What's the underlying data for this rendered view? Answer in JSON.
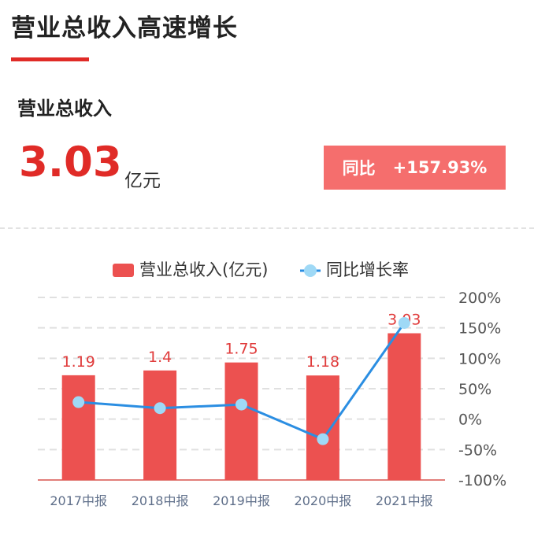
{
  "header": {
    "title": "营业总收入高速增长"
  },
  "metric": {
    "label": "营业总收入",
    "value": "3.03",
    "unit": "亿元",
    "yoy_label": "同比",
    "yoy_value": "+157.93%"
  },
  "colors": {
    "bar": "#ec5150",
    "line": "#2b8ee2",
    "point": "#9fd9f6",
    "accent": "#e02b27",
    "badge": "#f56e6d"
  },
  "chart_data": {
    "type": "bar+line",
    "categories": [
      "2017中报",
      "2018中报",
      "2019中报",
      "2020中报",
      "2021中报"
    ],
    "series": [
      {
        "name": "营业总收入(亿元)",
        "type": "bar",
        "values": [
          1.19,
          1.4,
          1.75,
          1.18,
          3.03
        ],
        "labels": [
          "1.19",
          "1.4",
          "1.75",
          "1.18",
          "3.03"
        ]
      },
      {
        "name": "同比增长率",
        "type": "line",
        "values": [
          28,
          18,
          24,
          -33,
          158
        ],
        "unit": "%"
      }
    ],
    "left_axis": {
      "range": [
        -3.4,
        4.6
      ],
      "hidden": true
    },
    "right_axis": {
      "range": [
        -100,
        200
      ],
      "ticks": [
        "200%",
        "150%",
        "100%",
        "50%",
        "0%",
        "-50%",
        "-100%"
      ]
    },
    "legend": {
      "position": "top",
      "items": [
        "营业总收入(亿元)",
        "同比增长率"
      ]
    }
  }
}
